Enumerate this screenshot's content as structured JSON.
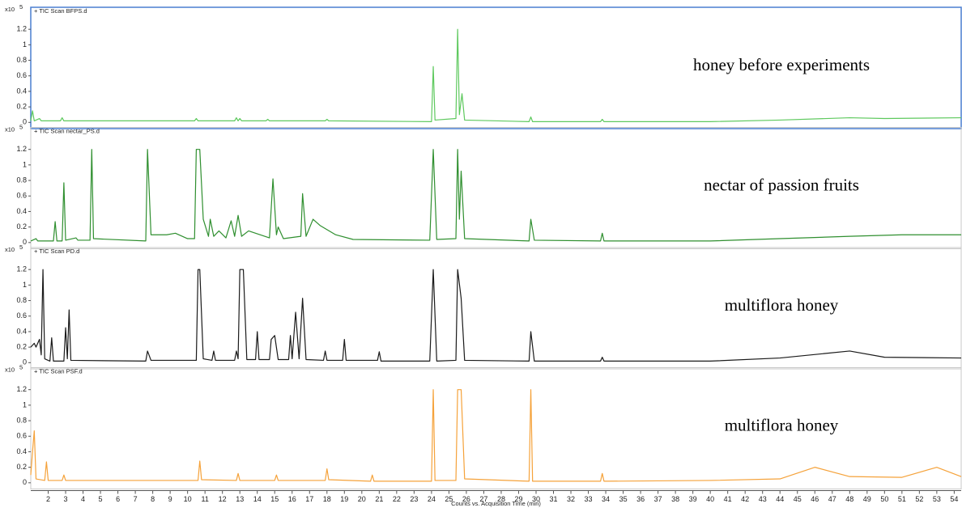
{
  "chart_data": [
    {
      "type": "line",
      "title": "+ TIC Scan BFPS.d",
      "annotation": "honey before experiments",
      "scale_label": "x10",
      "scale_exponent": "5",
      "xlim": [
        1,
        54.4
      ],
      "ylim": [
        -0.08,
        1.4
      ],
      "yticks": [
        0,
        0.2,
        0.4,
        0.6,
        0.8,
        1,
        1.2
      ],
      "color": "#5ec95e",
      "x": [
        1.0,
        1.1,
        1.2,
        1.5,
        1.6,
        2.7,
        2.8,
        2.9,
        10.4,
        10.5,
        10.6,
        12.7,
        12.8,
        12.9,
        13.0,
        13.1,
        14.5,
        14.6,
        14.7,
        17.9,
        18.0,
        18.1,
        24.0,
        24.1,
        24.2,
        25.4,
        25.5,
        25.6,
        25.75,
        25.9,
        29.6,
        29.7,
        29.8,
        33.7,
        33.8,
        33.9,
        40,
        44,
        48,
        50,
        54.4
      ],
      "values": [
        0.02,
        0.15,
        0.02,
        0.05,
        0.02,
        0.02,
        0.06,
        0.02,
        0.02,
        0.05,
        0.02,
        0.02,
        0.06,
        0.02,
        0.05,
        0.02,
        0.02,
        0.04,
        0.02,
        0.02,
        0.04,
        0.02,
        0.01,
        0.72,
        0.03,
        0.05,
        1.2,
        0.1,
        0.37,
        0.03,
        0.01,
        0.07,
        0.01,
        0.01,
        0.04,
        0.01,
        0.01,
        0.03,
        0.06,
        0.05,
        0.06
      ]
    },
    {
      "type": "line",
      "title": "+ TIC Scan nectar_PS.d",
      "annotation": "nectar of passion fruits",
      "scale_label": "x10",
      "scale_exponent": "5",
      "xlim": [
        1,
        54.4
      ],
      "ylim": [
        -0.08,
        1.4
      ],
      "yticks": [
        0,
        0.2,
        0.4,
        0.6,
        0.8,
        1,
        1.2
      ],
      "color": "#2f8f2f",
      "x": [
        1.0,
        1.3,
        1.4,
        2.3,
        2.4,
        2.5,
        2.8,
        2.9,
        3.0,
        3.6,
        3.7,
        4.4,
        4.5,
        4.6,
        7.6,
        7.7,
        7.9,
        8.8,
        9.3,
        10.0,
        10.4,
        10.5,
        10.7,
        10.9,
        11.2,
        11.3,
        11.5,
        11.8,
        12.2,
        12.5,
        12.7,
        12.9,
        13.1,
        13.5,
        14.7,
        14.9,
        15.1,
        15.2,
        15.5,
        16.5,
        16.6,
        16.8,
        17.2,
        17.6,
        18.5,
        19.5,
        23.9,
        24.1,
        24.3,
        25.4,
        25.5,
        25.6,
        25.7,
        25.9,
        29.6,
        29.7,
        29.9,
        33.7,
        33.8,
        33.9,
        40,
        44,
        48,
        51,
        54.4
      ],
      "values": [
        0.02,
        0.05,
        0.02,
        0.02,
        0.27,
        0.02,
        0.02,
        0.77,
        0.03,
        0.06,
        0.03,
        0.03,
        1.2,
        0.05,
        0.02,
        1.2,
        0.1,
        0.1,
        0.12,
        0.05,
        0.05,
        1.2,
        1.2,
        0.3,
        0.08,
        0.3,
        0.08,
        0.15,
        0.06,
        0.28,
        0.08,
        0.35,
        0.08,
        0.15,
        0.06,
        0.82,
        0.1,
        0.2,
        0.05,
        0.08,
        0.63,
        0.08,
        0.3,
        0.22,
        0.1,
        0.04,
        0.03,
        1.2,
        0.04,
        0.05,
        1.2,
        0.3,
        0.92,
        0.05,
        0.02,
        0.3,
        0.03,
        0.02,
        0.12,
        0.02,
        0.02,
        0.05,
        0.08,
        0.1,
        0.1
      ]
    },
    {
      "type": "line",
      "title": "+ TIC Scan PD.d",
      "annotation": "multiflora honey",
      "scale_label": "x10",
      "scale_exponent": "5",
      "xlim": [
        1,
        54.4
      ],
      "ylim": [
        -0.08,
        1.4
      ],
      "yticks": [
        0,
        0.2,
        0.4,
        0.6,
        0.8,
        1,
        1.2
      ],
      "color": "#1a1a1a",
      "x": [
        1.0,
        1.2,
        1.3,
        1.5,
        1.6,
        1.7,
        1.8,
        2.1,
        2.2,
        2.3,
        2.9,
        3.0,
        3.1,
        3.2,
        3.3,
        7.6,
        7.7,
        7.9,
        10.5,
        10.6,
        10.7,
        10.9,
        11.4,
        11.5,
        11.6,
        12.7,
        12.8,
        12.9,
        13.0,
        13.2,
        13.4,
        13.9,
        14.0,
        14.1,
        14.7,
        14.8,
        15.0,
        15.2,
        15.8,
        15.9,
        16.0,
        16.2,
        16.4,
        16.6,
        16.8,
        17.8,
        17.9,
        18.0,
        18.9,
        19.0,
        19.1,
        20.9,
        21.0,
        21.1,
        23.9,
        24.1,
        24.3,
        25.4,
        25.5,
        25.7,
        25.9,
        29.6,
        29.7,
        29.9,
        33.7,
        33.8,
        33.9,
        40,
        44,
        48,
        50,
        54.4
      ],
      "values": [
        0.2,
        0.25,
        0.2,
        0.3,
        0.1,
        1.2,
        0.05,
        0.02,
        0.32,
        0.02,
        0.02,
        0.45,
        0.05,
        0.68,
        0.03,
        0.02,
        0.15,
        0.03,
        0.03,
        1.2,
        1.2,
        0.05,
        0.03,
        0.15,
        0.03,
        0.03,
        0.15,
        0.05,
        1.2,
        1.2,
        0.04,
        0.04,
        0.4,
        0.04,
        0.04,
        0.3,
        0.35,
        0.04,
        0.04,
        0.35,
        0.05,
        0.65,
        0.05,
        0.83,
        0.04,
        0.03,
        0.15,
        0.03,
        0.03,
        0.3,
        0.03,
        0.03,
        0.14,
        0.02,
        0.02,
        1.2,
        0.02,
        0.03,
        1.2,
        0.83,
        0.03,
        0.02,
        0.4,
        0.02,
        0.02,
        0.07,
        0.02,
        0.02,
        0.06,
        0.15,
        0.07,
        0.06
      ]
    },
    {
      "type": "line",
      "title": "+ TIC Scan PSF.d",
      "annotation": "multiflora honey",
      "scale_label": "x10",
      "scale_exponent": "5",
      "xlim": [
        1,
        54.4
      ],
      "ylim": [
        -0.08,
        1.4
      ],
      "yticks": [
        0,
        0.2,
        0.4,
        0.6,
        0.8,
        1,
        1.2
      ],
      "color": "#f5a23a",
      "xlabel": "Counts vs. Acquisition Time (min)",
      "xticks": [
        2,
        3,
        4,
        5,
        6,
        7,
        8,
        9,
        10,
        11,
        12,
        13,
        14,
        15,
        16,
        17,
        18,
        19,
        20,
        21,
        22,
        23,
        24,
        25,
        26,
        27,
        28,
        29,
        30,
        31,
        32,
        33,
        34,
        35,
        36,
        37,
        38,
        39,
        40,
        41,
        42,
        43,
        44,
        45,
        46,
        47,
        48,
        49,
        50,
        51,
        52,
        53,
        54
      ],
      "x": [
        1.0,
        1.1,
        1.2,
        1.3,
        1.8,
        1.9,
        2.0,
        2.8,
        2.9,
        3.0,
        10.6,
        10.7,
        10.8,
        12.8,
        12.9,
        13.0,
        15.0,
        15.1,
        15.2,
        17.9,
        18.0,
        18.1,
        20.5,
        20.6,
        20.7,
        24.0,
        24.1,
        24.2,
        25.4,
        25.5,
        25.7,
        25.9,
        29.6,
        29.7,
        29.8,
        33.7,
        33.8,
        33.9,
        40,
        44,
        46,
        48,
        51,
        53,
        54.4
      ],
      "values": [
        0.1,
        0.4,
        0.67,
        0.05,
        0.03,
        0.27,
        0.03,
        0.03,
        0.1,
        0.03,
        0.03,
        0.28,
        0.04,
        0.03,
        0.12,
        0.03,
        0.03,
        0.1,
        0.03,
        0.03,
        0.18,
        0.04,
        0.02,
        0.1,
        0.02,
        0.02,
        1.2,
        0.03,
        0.03,
        1.2,
        1.2,
        0.05,
        0.02,
        1.2,
        0.02,
        0.02,
        0.12,
        0.02,
        0.03,
        0.05,
        0.2,
        0.08,
        0.07,
        0.2,
        0.08
      ]
    }
  ]
}
